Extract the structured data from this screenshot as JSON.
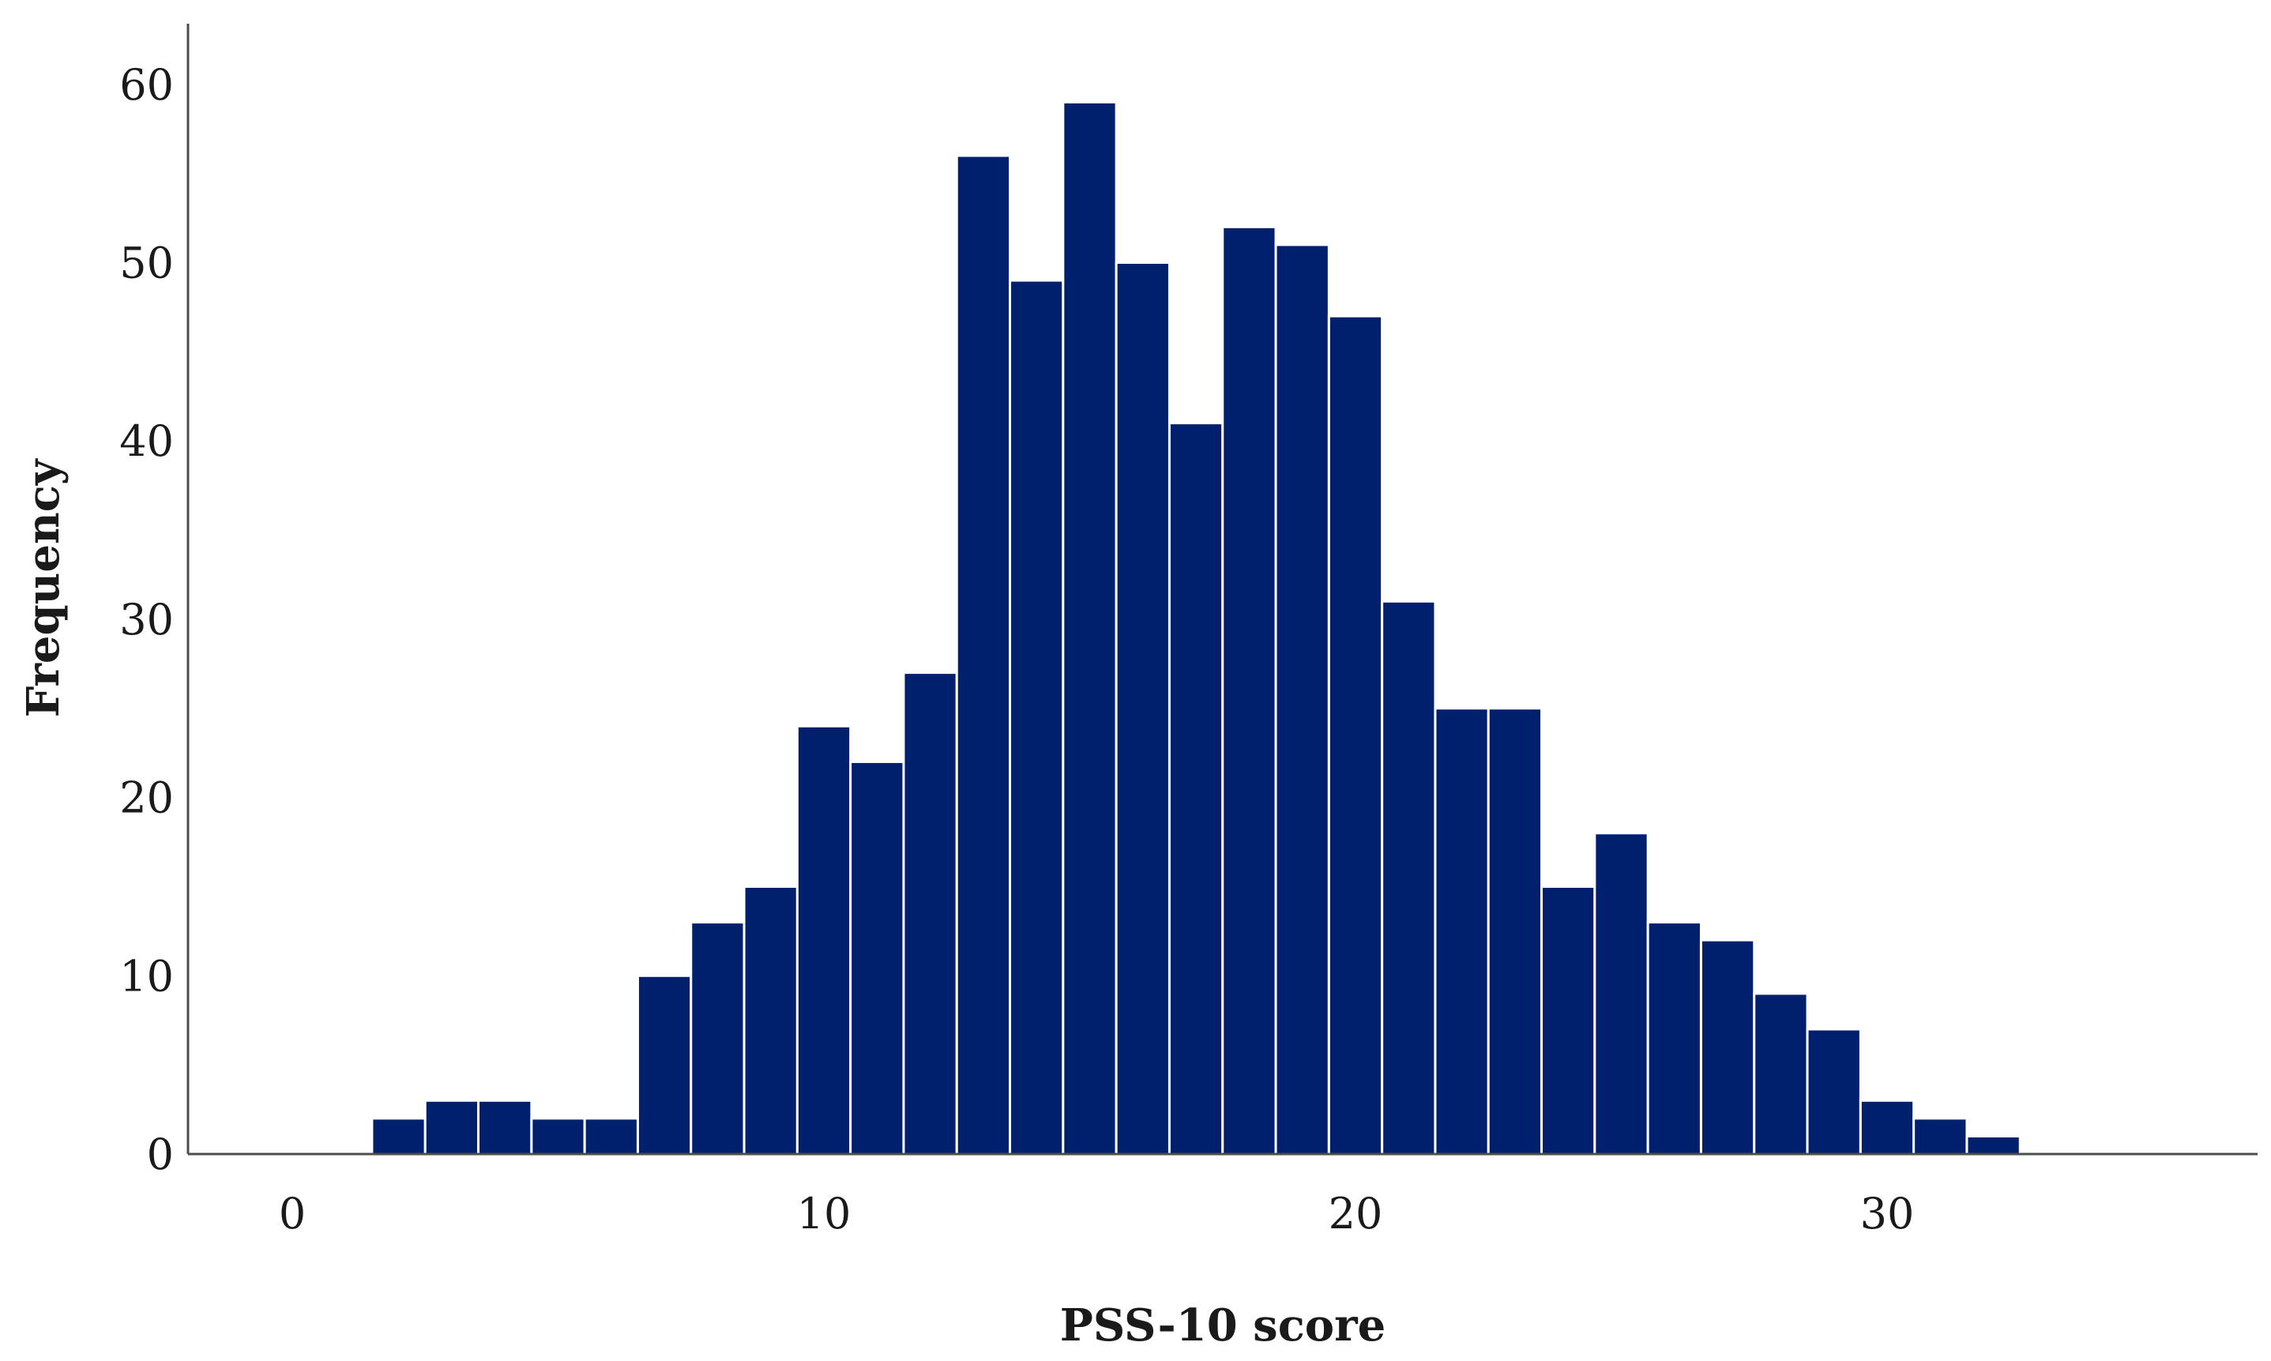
{
  "chart_data": {
    "type": "bar",
    "subtype": "histogram",
    "title": "",
    "xlabel": "PSS-10 score",
    "ylabel": "Frequency",
    "xlim": [
      0,
      36.5
    ],
    "ylim": [
      0,
      64
    ],
    "xticks": [
      0,
      10,
      20,
      30
    ],
    "yticks": [
      0,
      10,
      20,
      30,
      40,
      50,
      60
    ],
    "bin_width": 1,
    "bins": [
      2,
      3,
      4,
      5,
      6,
      7,
      8,
      9,
      10,
      11,
      12,
      13,
      14,
      15,
      16,
      17,
      18,
      19,
      20,
      21,
      22,
      23,
      24,
      25,
      26,
      27,
      28,
      29,
      30,
      31,
      32
    ],
    "values": [
      2,
      3,
      3,
      2,
      2,
      10,
      13,
      15,
      24,
      22,
      27,
      56,
      49,
      59,
      50,
      41,
      52,
      51,
      47,
      31,
      25,
      25,
      15,
      18,
      13,
      12,
      9,
      7,
      3,
      2,
      1
    ],
    "bar_color": "#00206e",
    "bar_edge_color": "#ffffff",
    "grid": false,
    "legend": "none"
  }
}
